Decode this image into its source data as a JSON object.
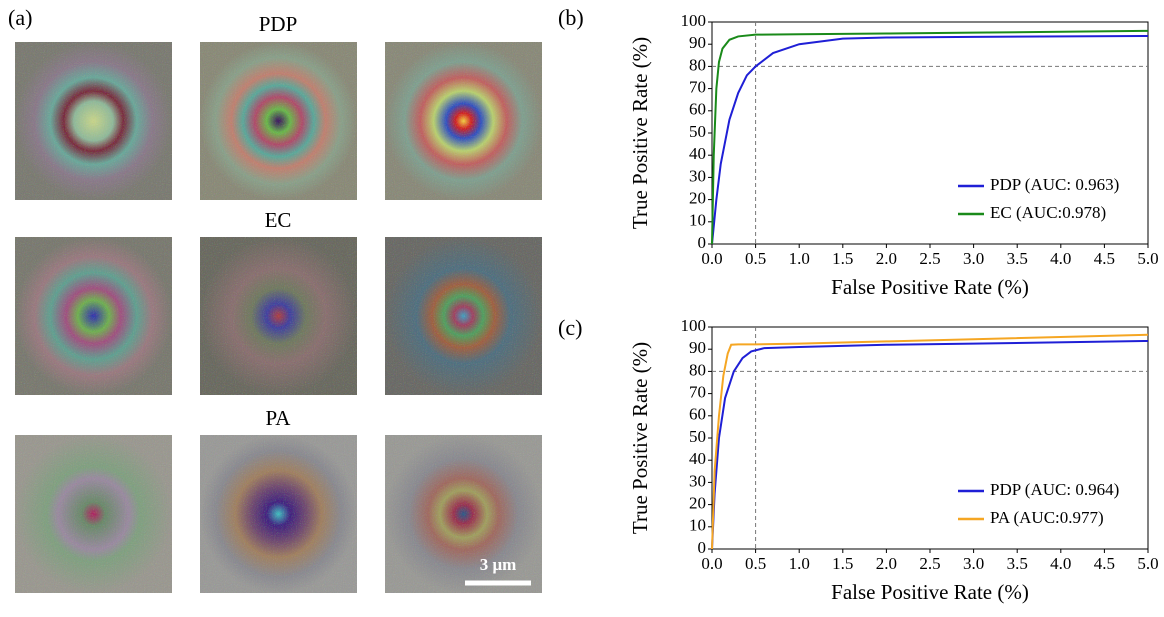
{
  "figure": {
    "panel_labels": [
      "(a)",
      "(b)",
      "(c)"
    ],
    "image_rows": [
      "PDP",
      "EC",
      "PA"
    ],
    "scale_bar": "3 μm"
  },
  "chart_data": [
    {
      "type": "line",
      "x_label": "False Positive Rate (%)",
      "y_label": "True Positive Rate (%)",
      "xlim": [
        0,
        5
      ],
      "ylim": [
        0,
        100
      ],
      "xticks": [
        {
          "value": 0,
          "label": "0.0"
        },
        0.5,
        {
          "value": 1,
          "label": "1.0"
        },
        1.5,
        {
          "value": 2,
          "label": "2.0"
        },
        2.5,
        {
          "value": 3,
          "label": "3.0"
        },
        3.5,
        {
          "value": 4,
          "label": "4.0"
        },
        4.5,
        {
          "value": 5,
          "label": "5.0"
        }
      ],
      "yticks": [
        0,
        10,
        20,
        30,
        40,
        50,
        60,
        70,
        80,
        90,
        100
      ],
      "reference_lines": {
        "x": 0.5,
        "y": 80
      },
      "legend": "lower right",
      "series": [
        {
          "name": "PDP (AUC: 0.963)",
          "color": "#1f1fd6",
          "x": [
            0,
            0.05,
            0.1,
            0.2,
            0.3,
            0.4,
            0.5,
            0.7,
            1.0,
            1.5,
            2.0,
            3.0,
            5.0
          ],
          "values": [
            0,
            20,
            36,
            56,
            68,
            76,
            80,
            86,
            90,
            92.5,
            93,
            93.3,
            93.7
          ]
        },
        {
          "name": "EC (AUC:0.978)",
          "color": "#1a8a1a",
          "x": [
            0,
            0.02,
            0.05,
            0.08,
            0.12,
            0.2,
            0.3,
            0.5,
            1.0,
            2.0,
            3.0,
            5.0
          ],
          "values": [
            0,
            40,
            70,
            82,
            88,
            92,
            93.5,
            94.3,
            94.5,
            94.8,
            95.2,
            96
          ]
        }
      ]
    },
    {
      "type": "line",
      "x_label": "False Positive Rate (%)",
      "y_label": "True Positive Rate (%)",
      "xlim": [
        0,
        5
      ],
      "ylim": [
        0,
        100
      ],
      "xticks": [
        {
          "value": 0,
          "label": "0.0"
        },
        0.5,
        {
          "value": 1,
          "label": "1.0"
        },
        1.5,
        {
          "value": 2,
          "label": "2.0"
        },
        2.5,
        {
          "value": 3,
          "label": "3.0"
        },
        3.5,
        {
          "value": 4,
          "label": "4.0"
        },
        4.5,
        {
          "value": 5,
          "label": "5.0"
        }
      ],
      "yticks": [
        0,
        10,
        20,
        30,
        40,
        50,
        60,
        70,
        80,
        90,
        100
      ],
      "reference_lines": {
        "x": 0.5,
        "y": 80
      },
      "legend": "lower right",
      "series": [
        {
          "name": "PDP (AUC: 0.964)",
          "color": "#1f1fd6",
          "x": [
            0,
            0.03,
            0.08,
            0.15,
            0.25,
            0.35,
            0.45,
            0.6,
            1.0,
            2.0,
            3.0,
            5.0
          ],
          "values": [
            0,
            25,
            50,
            68,
            80,
            86,
            89,
            90.5,
            91,
            92,
            92.5,
            93.7
          ]
        },
        {
          "name": "PA (AUC:0.977)",
          "color": "#f5a623",
          "x": [
            0,
            0.03,
            0.08,
            0.13,
            0.18,
            0.22,
            0.3,
            0.5,
            1.0,
            2.0,
            3.0,
            5.0
          ],
          "values": [
            0,
            35,
            60,
            78,
            88,
            92,
            92.2,
            92.2,
            92.5,
            93.5,
            94.5,
            96.5
          ]
        }
      ]
    }
  ]
}
